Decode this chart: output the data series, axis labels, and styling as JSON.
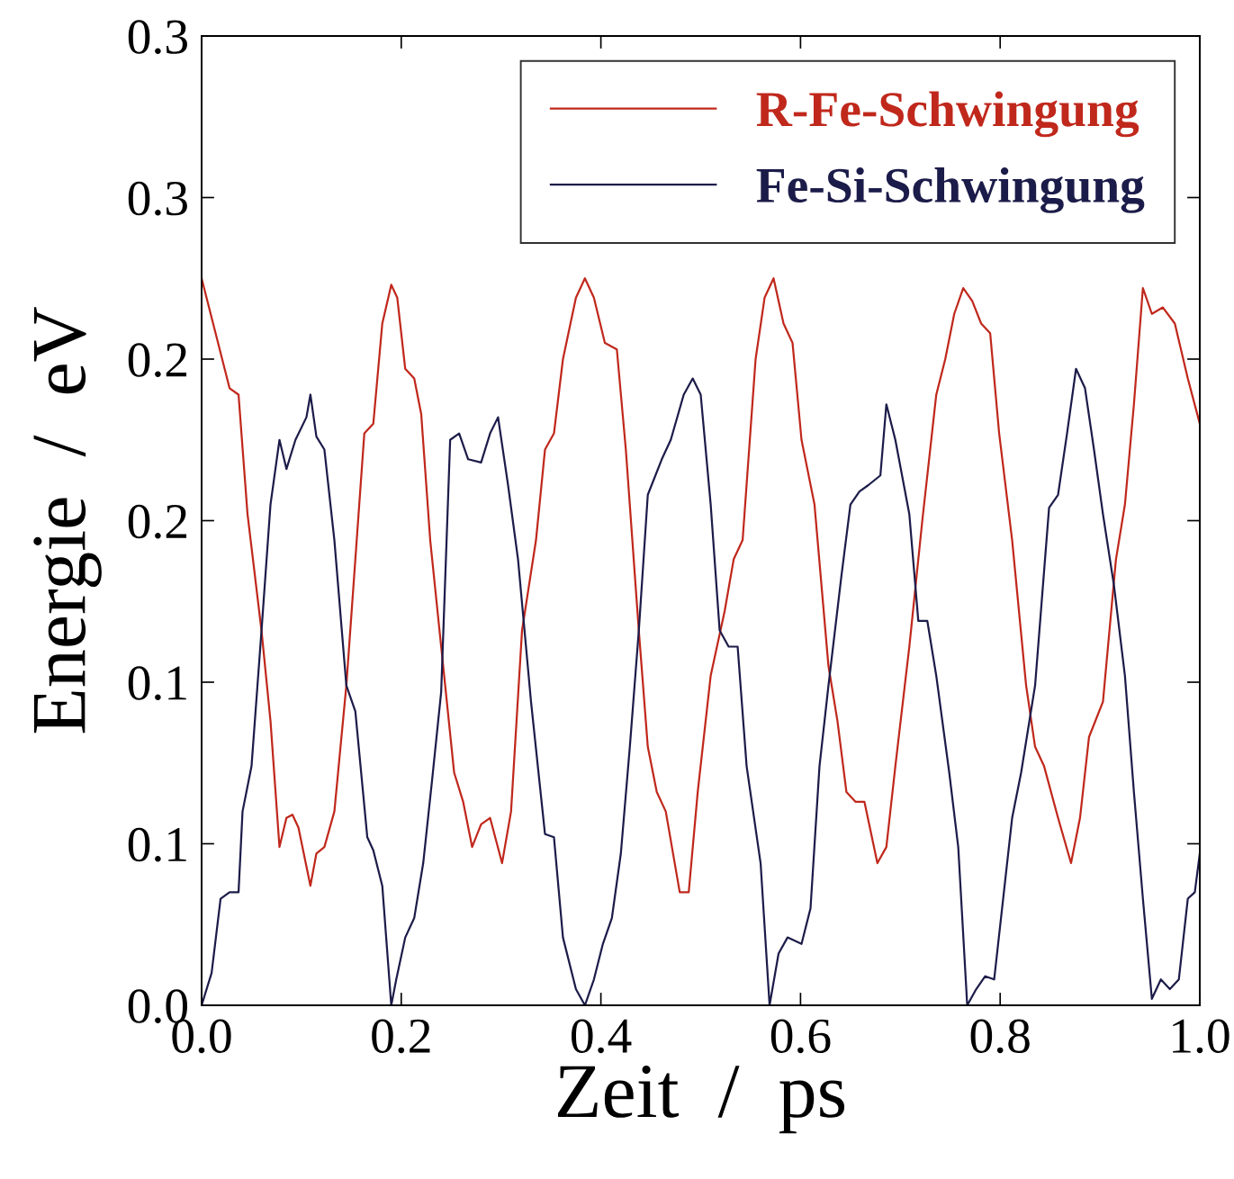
{
  "chart_data": {
    "type": "line",
    "xlabel": "Zeit  /  ps",
    "ylabel": "Energie  /  eV",
    "xlim": [
      0,
      1.0
    ],
    "xticks": [
      {
        "value": 0,
        "label": "0.0"
      },
      0.2,
      0.4,
      0.6,
      0.8,
      {
        "value": 1.0,
        "label": "1.0"
      }
    ],
    "ylim": [
      0,
      0.3
    ],
    "yticks": [
      {
        "value": 0,
        "label": "0.0"
      },
      {
        "value": 0.05,
        "label": "0.1"
      },
      {
        "value": 0.1,
        "label": "0.1"
      },
      {
        "value": 0.15,
        "label": "0.2"
      },
      {
        "value": 0.2,
        "label": "0.2"
      },
      {
        "value": 0.25,
        "label": "0.3"
      },
      {
        "value": 0.3,
        "label": "0.3"
      }
    ],
    "grid": false,
    "legend": "top right",
    "marker": "none",
    "line_style": "solid",
    "series": [
      {
        "name": "R-Fe-Schwingung",
        "color": "#c0281c",
        "x": [
          0,
          0.014,
          0.028,
          0.037,
          0.046,
          0.06,
          0.069,
          0.078,
          0.085,
          0.091,
          0.097,
          0.109,
          0.115,
          0.123,
          0.133,
          0.145,
          0.154,
          0.163,
          0.172,
          0.181,
          0.19,
          0.196,
          0.204,
          0.213,
          0.22,
          0.229,
          0.24,
          0.253,
          0.262,
          0.271,
          0.28,
          0.289,
          0.301,
          0.31,
          0.321,
          0.335,
          0.344,
          0.353,
          0.362,
          0.375,
          0.384,
          0.393,
          0.404,
          0.416,
          0.425,
          0.438,
          0.447,
          0.456,
          0.465,
          0.479,
          0.488,
          0.497,
          0.51,
          0.524,
          0.533,
          0.542,
          0.555,
          0.564,
          0.573,
          0.583,
          0.592,
          0.601,
          0.614,
          0.628,
          0.637,
          0.646,
          0.655,
          0.664,
          0.677,
          0.686,
          0.695,
          0.709,
          0.722,
          0.736,
          0.745,
          0.754,
          0.763,
          0.772,
          0.781,
          0.79,
          0.799,
          0.812,
          0.826,
          0.835,
          0.844,
          0.858,
          0.871,
          0.88,
          0.889,
          0.903,
          0.916,
          0.925,
          0.934,
          0.943,
          0.952,
          0.963,
          0.975,
          0.988,
          1.0
        ],
        "values": [
          0.225,
          0.208,
          0.191,
          0.189,
          0.152,
          0.116,
          0.088,
          0.049,
          0.058,
          0.059,
          0.055,
          0.037,
          0.047,
          0.049,
          0.06,
          0.099,
          0.138,
          0.177,
          0.18,
          0.211,
          0.223,
          0.219,
          0.197,
          0.194,
          0.183,
          0.144,
          0.111,
          0.072,
          0.063,
          0.049,
          0.056,
          0.058,
          0.044,
          0.06,
          0.116,
          0.144,
          0.172,
          0.177,
          0.2,
          0.219,
          0.225,
          0.219,
          0.205,
          0.203,
          0.172,
          0.116,
          0.08,
          0.066,
          0.06,
          0.035,
          0.035,
          0.066,
          0.102,
          0.122,
          0.138,
          0.144,
          0.2,
          0.219,
          0.225,
          0.211,
          0.205,
          0.175,
          0.155,
          0.105,
          0.088,
          0.066,
          0.063,
          0.063,
          0.044,
          0.049,
          0.074,
          0.111,
          0.15,
          0.189,
          0.2,
          0.214,
          0.222,
          0.218,
          0.211,
          0.208,
          0.177,
          0.144,
          0.099,
          0.08,
          0.074,
          0.058,
          0.044,
          0.058,
          0.083,
          0.094,
          0.138,
          0.155,
          0.186,
          0.222,
          0.214,
          0.216,
          0.211,
          0.194,
          0.18
        ]
      },
      {
        "name": "Fe-Si-Schwingung",
        "color": "#1c1c4a",
        "x": [
          0,
          0.01,
          0.019,
          0.028,
          0.037,
          0.041,
          0.05,
          0.06,
          0.069,
          0.078,
          0.085,
          0.094,
          0.105,
          0.109,
          0.115,
          0.123,
          0.133,
          0.145,
          0.154,
          0.166,
          0.172,
          0.181,
          0.19,
          0.195,
          0.204,
          0.213,
          0.222,
          0.231,
          0.24,
          0.249,
          0.258,
          0.267,
          0.28,
          0.289,
          0.297,
          0.307,
          0.317,
          0.33,
          0.344,
          0.353,
          0.362,
          0.375,
          0.384,
          0.393,
          0.402,
          0.411,
          0.42,
          0.429,
          0.438,
          0.447,
          0.461,
          0.47,
          0.483,
          0.492,
          0.5,
          0.51,
          0.519,
          0.528,
          0.537,
          0.546,
          0.56,
          0.569,
          0.578,
          0.587,
          0.601,
          0.61,
          0.619,
          0.628,
          0.641,
          0.65,
          0.659,
          0.668,
          0.68,
          0.686,
          0.695,
          0.709,
          0.718,
          0.727,
          0.736,
          0.749,
          0.758,
          0.767,
          0.776,
          0.785,
          0.794,
          0.803,
          0.812,
          0.821,
          0.835,
          0.849,
          0.858,
          0.867,
          0.876,
          0.885,
          0.894,
          0.903,
          0.914,
          0.925,
          0.934,
          0.943,
          0.952,
          0.961,
          0.97,
          0.979,
          0.988,
          0.995,
          1.0
        ],
        "values": [
          0,
          0.01,
          0.033,
          0.035,
          0.035,
          0.06,
          0.074,
          0.116,
          0.155,
          0.175,
          0.166,
          0.175,
          0.182,
          0.189,
          0.176,
          0.172,
          0.144,
          0.099,
          0.091,
          0.052,
          0.048,
          0.037,
          0,
          0.008,
          0.021,
          0.027,
          0.044,
          0.07,
          0.097,
          0.175,
          0.177,
          0.169,
          0.168,
          0.177,
          0.182,
          0.161,
          0.138,
          0.094,
          0.053,
          0.052,
          0.021,
          0.005,
          0,
          0.008,
          0.019,
          0.027,
          0.047,
          0.08,
          0.116,
          0.158,
          0.169,
          0.175,
          0.189,
          0.194,
          0.189,
          0.155,
          0.116,
          0.111,
          0.111,
          0.074,
          0.044,
          0,
          0.016,
          0.021,
          0.019,
          0.03,
          0.074,
          0.099,
          0.133,
          0.155,
          0.159,
          0.161,
          0.164,
          0.186,
          0.175,
          0.152,
          0.119,
          0.119,
          0.102,
          0.072,
          0.049,
          0,
          0.005,
          0.009,
          0.008,
          0.033,
          0.058,
          0.072,
          0.099,
          0.154,
          0.158,
          0.177,
          0.197,
          0.191,
          0.172,
          0.152,
          0.13,
          0.102,
          0.066,
          0.033,
          0.002,
          0.008,
          0.005,
          0.008,
          0.033,
          0.035,
          0.047
        ]
      }
    ]
  }
}
